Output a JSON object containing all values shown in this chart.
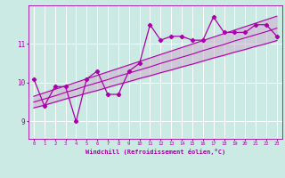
{
  "xlabel": "Windchill (Refroidissement éolien,°C)",
  "bg_color": "#cceae4",
  "grid_color": "#ffffff",
  "line_color": "#aa00aa",
  "fill_color": "#ccaacc",
  "x_ticks": [
    0,
    1,
    2,
    3,
    4,
    5,
    6,
    7,
    8,
    9,
    10,
    11,
    12,
    13,
    14,
    15,
    16,
    17,
    18,
    19,
    20,
    21,
    22,
    23
  ],
  "y_ticks": [
    9,
    10,
    11
  ],
  "xlim": [
    -0.5,
    23.5
  ],
  "ylim": [
    8.55,
    12.0
  ],
  "data_points": [
    10.1,
    9.4,
    9.9,
    9.9,
    9.0,
    10.1,
    10.3,
    9.7,
    9.7,
    10.3,
    10.5,
    11.5,
    11.1,
    11.2,
    11.2,
    11.1,
    11.1,
    11.7,
    11.3,
    11.3,
    11.3,
    11.5,
    11.5,
    11.2
  ],
  "smooth_low": [
    9.35,
    9.42,
    9.5,
    9.58,
    9.65,
    9.73,
    9.8,
    9.88,
    9.96,
    10.03,
    10.11,
    10.18,
    10.26,
    10.33,
    10.41,
    10.48,
    10.56,
    10.64,
    10.71,
    10.79,
    10.86,
    10.94,
    11.01,
    11.09
  ],
  "smooth_high": [
    9.65,
    9.74,
    9.83,
    9.92,
    10.01,
    10.1,
    10.19,
    10.28,
    10.37,
    10.46,
    10.55,
    10.64,
    10.73,
    10.82,
    10.91,
    11.0,
    11.09,
    11.18,
    11.27,
    11.36,
    11.45,
    11.54,
    11.63,
    11.72
  ],
  "smooth_mid": [
    9.5,
    9.58,
    9.66,
    9.75,
    9.83,
    9.92,
    10.0,
    10.08,
    10.17,
    10.25,
    10.33,
    10.41,
    10.5,
    10.58,
    10.66,
    10.74,
    10.83,
    10.91,
    10.99,
    11.08,
    11.16,
    11.24,
    11.32,
    11.41
  ]
}
